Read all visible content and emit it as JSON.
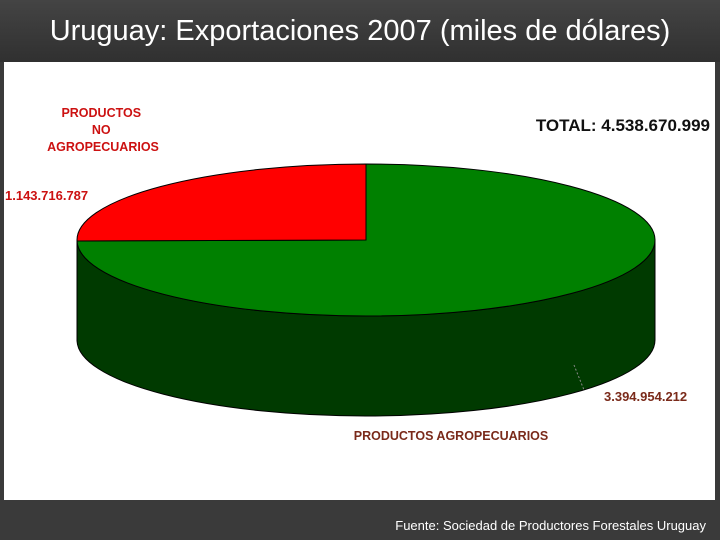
{
  "slide": {
    "title": "Uruguay: Exportaciones 2007 (miles de dólares)",
    "source": "Fuente: Sociedad de Productores Forestales Uruguay"
  },
  "chart_data": {
    "type": "pie",
    "style": "3d",
    "total_label": "TOTAL: 4.538.670.999",
    "slices": [
      {
        "name": "PRODUCTOS AGROPECUARIOS",
        "value": 3394954212,
        "value_label": "3.394.954.212",
        "color": "#008000",
        "label_color": "#7a2a1a"
      },
      {
        "name": "PRODUCTOS NO AGROPECUARIOS",
        "name_lines": [
          "PRODUCTOS",
          "NO",
          "AGROPECUARIOS"
        ],
        "value": 1143716787,
        "value_label": "1.143.716.787",
        "color": "#ff0000",
        "label_color": "#cc1111"
      }
    ]
  }
}
